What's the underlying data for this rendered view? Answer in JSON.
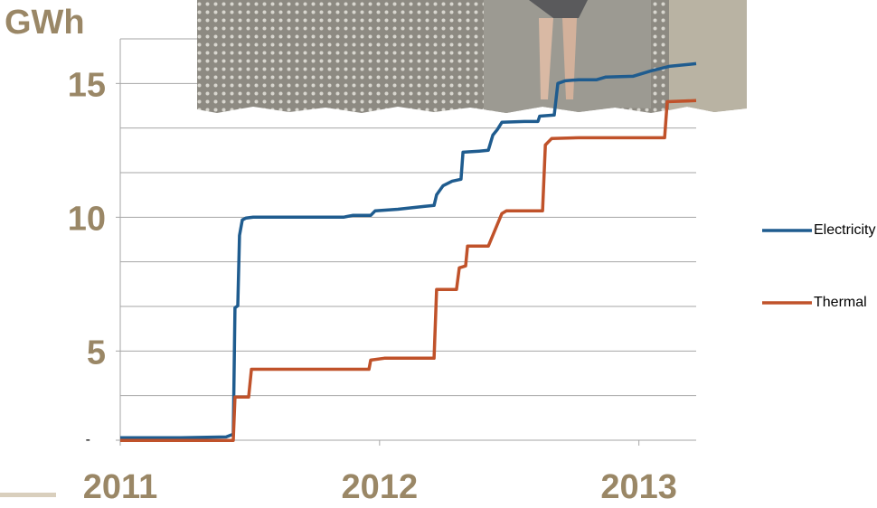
{
  "chart_data": {
    "type": "line",
    "y_label": "GWh",
    "x_unit": "months",
    "xlim": [
      0,
      26.65
    ],
    "xticks": [
      {
        "value": 0,
        "label": "2011"
      },
      {
        "value": 12,
        "label": "2012"
      },
      {
        "value": 24,
        "label": "2013"
      }
    ],
    "ylim": [
      1.667,
      16.667
    ],
    "yticks": [
      {
        "value": 1.667,
        "label": "-"
      },
      15,
      10,
      5
    ],
    "y_gridlines": [
      1.667,
      3.333,
      5,
      6.667,
      8.333,
      10,
      11.667,
      13.333,
      15,
      16.667
    ],
    "grid": true,
    "legend": "right",
    "series": [
      {
        "name": "Electricity",
        "color": "#1f5c8f",
        "x": [
          0,
          2.8,
          4.9,
          5.23,
          5.31,
          5.44,
          5.52,
          5.65,
          5.82,
          6.15,
          10.33,
          10.75,
          11.59,
          11.8,
          12.85,
          14.1,
          14.52,
          14.64,
          14.94,
          15.36,
          15.77,
          15.86,
          16.61,
          17.03,
          17.24,
          17.45,
          17.66,
          18.7,
          19.33,
          19.41,
          20.08,
          20.25,
          20.59,
          21.21,
          22.05,
          22.47,
          23.72,
          24.56,
          25.4,
          26.65
        ],
        "values": [
          1.76,
          1.76,
          1.79,
          1.89,
          6.62,
          6.69,
          9.32,
          9.9,
          9.97,
          10.0,
          10.0,
          10.07,
          10.07,
          10.24,
          10.3,
          10.41,
          10.44,
          10.84,
          11.18,
          11.35,
          11.42,
          12.43,
          12.47,
          12.5,
          13.07,
          13.28,
          13.55,
          13.58,
          13.58,
          13.78,
          13.82,
          15.0,
          15.1,
          15.14,
          15.14,
          15.24,
          15.27,
          15.47,
          15.64,
          15.74
        ]
      },
      {
        "name": "Thermal",
        "color": "#c0522a",
        "x": [
          0,
          5.23,
          5.31,
          5.94,
          6.07,
          11.51,
          11.59,
          12.22,
          14.52,
          14.64,
          15.56,
          15.69,
          15.98,
          16.07,
          17.03,
          17.66,
          17.87,
          19.54,
          19.67,
          19.96,
          21.21,
          25.19,
          25.31,
          26.65
        ],
        "values": [
          1.66,
          1.66,
          3.28,
          3.28,
          4.32,
          4.32,
          4.66,
          4.73,
          4.73,
          7.3,
          7.3,
          8.11,
          8.18,
          8.92,
          8.92,
          10.14,
          10.24,
          10.24,
          12.7,
          12.94,
          12.97,
          12.97,
          14.32,
          14.36
        ]
      }
    ]
  }
}
